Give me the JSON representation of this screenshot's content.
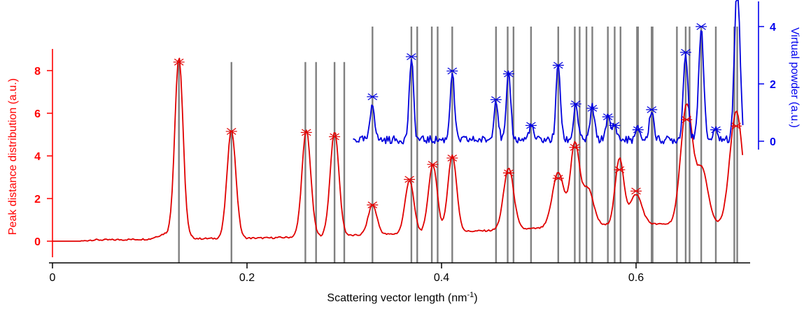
{
  "chart_data": {
    "type": "line",
    "title": "",
    "xlabel": "Scattering vector length (nm",
    "xlabel_sup": "-1",
    "xlabel_suffix": ")",
    "ylabel_left": "Peak distance distribution (a.u.)",
    "ylabel_right": "Virtual powder (a.u.)",
    "xlim": [
      0,
      0.72
    ],
    "ylim_left": [
      -1,
      9.2
    ],
    "ylim_right": [
      -0.3,
      4.8
    ],
    "x_ticks": [
      0,
      0.2,
      0.4,
      0.6
    ],
    "x_tick_labels": [
      "0",
      "0.2",
      "0.4",
      "0.6"
    ],
    "y_left_ticks": [
      0,
      2,
      4,
      6,
      8
    ],
    "y_left_tick_labels": [
      "0",
      "2",
      "4",
      "6",
      "8"
    ],
    "y_right_ticks": [
      0,
      2,
      4
    ],
    "y_right_tick_labels": [
      "0",
      "2",
      "4"
    ],
    "colors": {
      "left_axis": "#ff0000",
      "right_axis": "#0000ee",
      "peak_distance": "#e00000",
      "virtual_powder": "#0000dd",
      "reference_lines": "#808080",
      "axis": "#000000"
    },
    "reflection_lines": {
      "short_top": 8.4,
      "tall_top": "axis-top",
      "short_x": [
        0.13,
        0.184,
        0.26,
        0.271,
        0.29,
        0.3
      ],
      "tall_x": [
        0.329,
        0.369,
        0.375,
        0.39,
        0.396,
        0.411,
        0.456,
        0.468,
        0.474,
        0.492,
        0.52,
        0.537,
        0.542,
        0.549,
        0.555,
        0.571,
        0.578,
        0.584,
        0.601,
        0.602,
        0.616,
        0.617,
        0.642,
        0.651,
        0.655,
        0.667,
        0.682,
        0.701,
        0.704
      ]
    },
    "series": [
      {
        "axis": "left",
        "color": "#e00000",
        "peaks": [
          {
            "x": 0.13,
            "y": 8.4,
            "w": 0.0042
          },
          {
            "x": 0.184,
            "y": 5.1,
            "w": 0.0045
          },
          {
            "x": 0.261,
            "y": 5.0,
            "w": 0.0045
          },
          {
            "x": 0.29,
            "y": 4.9,
            "w": 0.0045
          },
          {
            "x": 0.329,
            "y": 1.4,
            "w": 0.0045
          },
          {
            "x": 0.367,
            "y": 2.5,
            "w": 0.0045
          },
          {
            "x": 0.391,
            "y": 3.2,
            "w": 0.0045
          },
          {
            "x": 0.411,
            "y": 3.6,
            "w": 0.0045
          },
          {
            "x": 0.469,
            "y": 2.9,
            "w": 0.0052
          },
          {
            "x": 0.52,
            "y": 2.6,
            "w": 0.006
          },
          {
            "x": 0.537,
            "y": 3.8,
            "w": 0.0045
          },
          {
            "x": 0.55,
            "y": 1.8,
            "w": 0.006
          },
          {
            "x": 0.583,
            "y": 3.1,
            "w": 0.0045
          },
          {
            "x": 0.6,
            "y": 1.4,
            "w": 0.006
          },
          {
            "x": 0.652,
            "y": 5.6,
            "w": 0.006
          },
          {
            "x": 0.668,
            "y": 2.5,
            "w": 0.006
          },
          {
            "x": 0.703,
            "y": 5.3,
            "w": 0.0065
          }
        ],
        "baseline": [
          [
            0.0,
            0.0
          ],
          [
            0.03,
            0.0
          ],
          [
            0.04,
            0.06
          ],
          [
            0.06,
            0.06
          ],
          [
            0.1,
            0.1
          ],
          [
            0.115,
            0.35
          ],
          [
            0.15,
            0.12
          ],
          [
            0.22,
            0.15
          ],
          [
            0.33,
            0.3
          ],
          [
            0.45,
            0.5
          ],
          [
            0.6,
            0.8
          ],
          [
            0.72,
            0.8
          ]
        ],
        "markers": [
          {
            "x": 0.13,
            "y": 8.4
          },
          {
            "x": 0.184,
            "y": 5.15
          },
          {
            "x": 0.261,
            "y": 5.1
          },
          {
            "x": 0.29,
            "y": 4.9
          },
          {
            "x": 0.329,
            "y": 1.7
          },
          {
            "x": 0.367,
            "y": 2.9
          },
          {
            "x": 0.391,
            "y": 3.6
          },
          {
            "x": 0.411,
            "y": 3.9
          },
          {
            "x": 0.469,
            "y": 3.2
          },
          {
            "x": 0.52,
            "y": 2.95
          },
          {
            "x": 0.537,
            "y": 4.4
          },
          {
            "x": 0.583,
            "y": 3.35
          },
          {
            "x": 0.6,
            "y": 2.35
          },
          {
            "x": 0.652,
            "y": 5.7
          },
          {
            "x": 0.703,
            "y": 5.4
          }
        ]
      },
      {
        "axis": "right",
        "color": "#0000dd",
        "x_start": 0.309,
        "baseline_level": 0.05,
        "peaks": [
          {
            "x": 0.329,
            "y": 1.3,
            "w": 0.0022
          },
          {
            "x": 0.369,
            "y": 2.8,
            "w": 0.0022
          },
          {
            "x": 0.411,
            "y": 2.35,
            "w": 0.0022
          },
          {
            "x": 0.456,
            "y": 1.4,
            "w": 0.0022
          },
          {
            "x": 0.469,
            "y": 2.3,
            "w": 0.0022
          },
          {
            "x": 0.492,
            "y": 0.5,
            "w": 0.0022
          },
          {
            "x": 0.52,
            "y": 2.65,
            "w": 0.0022
          },
          {
            "x": 0.538,
            "y": 1.25,
            "w": 0.0022
          },
          {
            "x": 0.555,
            "y": 1.15,
            "w": 0.0022
          },
          {
            "x": 0.571,
            "y": 0.8,
            "w": 0.0022
          },
          {
            "x": 0.578,
            "y": 0.55,
            "w": 0.0022
          },
          {
            "x": 0.602,
            "y": 0.4,
            "w": 0.0022
          },
          {
            "x": 0.616,
            "y": 1.05,
            "w": 0.0022
          },
          {
            "x": 0.651,
            "y": 3.0,
            "w": 0.0025
          },
          {
            "x": 0.667,
            "y": 3.95,
            "w": 0.0025
          },
          {
            "x": 0.682,
            "y": 0.35,
            "w": 0.0022
          },
          {
            "x": 0.704,
            "y": 5.5,
            "w": 0.0028
          }
        ],
        "markers": [
          {
            "x": 0.329,
            "y": 1.55
          },
          {
            "x": 0.369,
            "y": 2.95
          },
          {
            "x": 0.411,
            "y": 2.45
          },
          {
            "x": 0.456,
            "y": 1.45
          },
          {
            "x": 0.469,
            "y": 2.35
          },
          {
            "x": 0.492,
            "y": 0.55
          },
          {
            "x": 0.52,
            "y": 2.65
          },
          {
            "x": 0.538,
            "y": 1.3
          },
          {
            "x": 0.555,
            "y": 1.15
          },
          {
            "x": 0.571,
            "y": 0.85
          },
          {
            "x": 0.578,
            "y": 0.55
          },
          {
            "x": 0.602,
            "y": 0.4
          },
          {
            "x": 0.616,
            "y": 1.1
          },
          {
            "x": 0.651,
            "y": 3.1
          },
          {
            "x": 0.667,
            "y": 4.0
          },
          {
            "x": 0.682,
            "y": 0.4
          }
        ]
      }
    ]
  }
}
